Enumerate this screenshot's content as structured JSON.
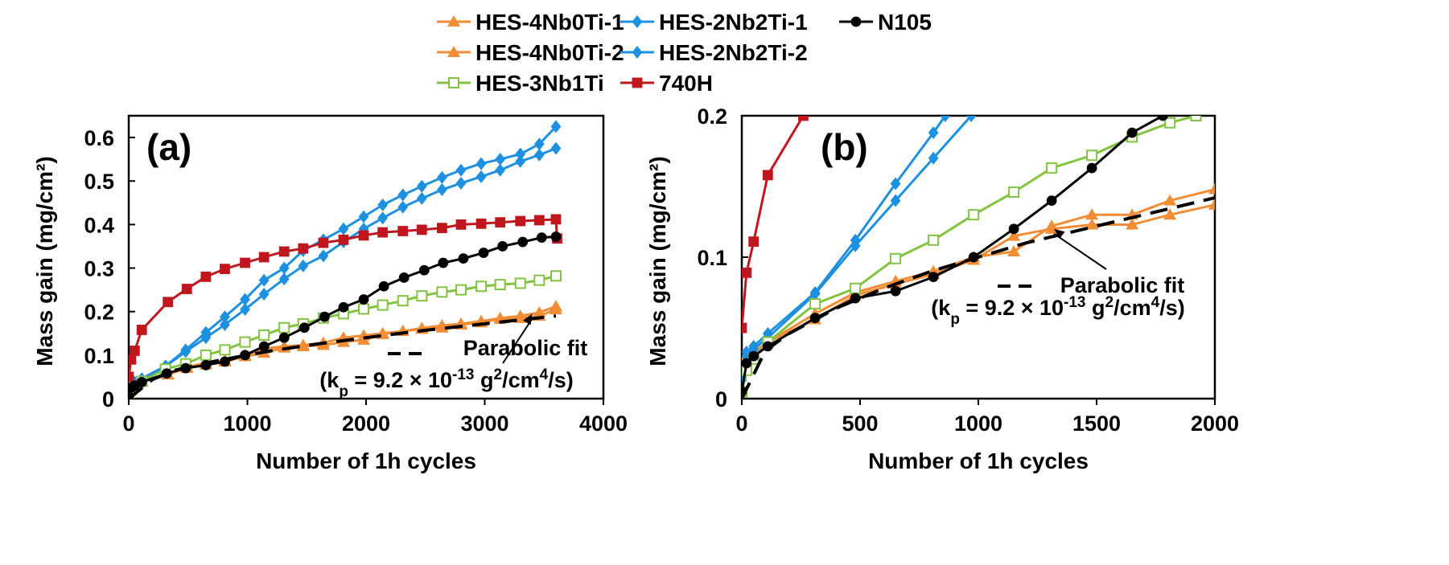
{
  "legend": [
    {
      "label": "HES-4Nb0Ti-1",
      "color": "#f28c35",
      "marker": "triangle"
    },
    {
      "label": "HES-2Nb2Ti-1",
      "color": "#1e90e0",
      "marker": "diamond"
    },
    {
      "label": "N105",
      "color": "#000000",
      "marker": "circle"
    },
    {
      "label": "HES-4Nb0Ti-2",
      "color": "#f28c35",
      "marker": "triangle"
    },
    {
      "label": "HES-2Nb2Ti-2",
      "color": "#1e90e0",
      "marker": "diamond"
    },
    {
      "label": "HES-3Nb1Ti",
      "color": "#82c341",
      "marker": "square-open"
    },
    {
      "label": "740H",
      "color": "#c0171f",
      "marker": "square"
    }
  ],
  "chart_data": [
    {
      "type": "line",
      "panel_label": "(a)",
      "xlabel": "Number of 1h cycles",
      "ylabel": "Mass gain (mg/cm²)",
      "xlim": [
        0,
        4000
      ],
      "ylim": [
        0,
        0.65
      ],
      "xticks": [
        0,
        1000,
        2000,
        3000,
        4000
      ],
      "yticks": [
        0,
        0.1,
        0.2,
        0.3,
        0.4,
        0.5,
        0.6
      ],
      "ytick_labels": [
        "0",
        "0.1",
        "0.2",
        "0.3",
        "0.4",
        "0.5",
        "0.6"
      ],
      "fit_label": "Parabolic fit",
      "fit_kp_label": "(kp = 9.2 × 10-13 g2/cm4/s)",
      "series": [
        {
          "name": "HES-4Nb0Ti-1",
          "color": "#f28c35",
          "marker": "triangle",
          "x": [
            0,
            20,
            50,
            110,
            330,
            490,
            650,
            810,
            980,
            1140,
            1310,
            1470,
            1640,
            1810,
            1980,
            2140,
            2310,
            2470,
            2640,
            2800,
            2970,
            3130,
            3300,
            3460,
            3600
          ],
          "y": [
            0.005,
            0.022,
            0.03,
            0.04,
            0.055,
            0.07,
            0.078,
            0.085,
            0.097,
            0.105,
            0.117,
            0.12,
            0.123,
            0.13,
            0.135,
            0.148,
            0.155,
            0.162,
            0.168,
            0.172,
            0.178,
            0.185,
            0.19,
            0.198,
            0.212
          ]
        },
        {
          "name": "HES-4Nb0Ti-2",
          "color": "#f28c35",
          "marker": "triangle",
          "x": [
            0,
            20,
            50,
            110,
            330,
            490,
            650,
            810,
            980,
            1140,
            1310,
            1470,
            1640,
            1810,
            1980,
            2140,
            2310,
            2470,
            2640,
            2800,
            2970,
            3130,
            3300,
            3460,
            3600
          ],
          "y": [
            0.005,
            0.02,
            0.028,
            0.038,
            0.056,
            0.073,
            0.082,
            0.088,
            0.1,
            0.115,
            0.12,
            0.123,
            0.128,
            0.14,
            0.145,
            0.15,
            0.155,
            0.16,
            0.163,
            0.17,
            0.175,
            0.183,
            0.185,
            0.19,
            0.205
          ]
        },
        {
          "name": "HES-2Nb2Ti-1",
          "color": "#1e90e0",
          "marker": "diamond",
          "x": [
            0,
            20,
            50,
            110,
            310,
            480,
            650,
            810,
            980,
            1140,
            1310,
            1470,
            1640,
            1810,
            1980,
            2140,
            2310,
            2470,
            2640,
            2800,
            2970,
            3130,
            3300,
            3460,
            3600
          ],
          "y": [
            0.015,
            0.033,
            0.038,
            0.046,
            0.075,
            0.112,
            0.152,
            0.188,
            0.228,
            0.272,
            0.3,
            0.34,
            0.365,
            0.39,
            0.418,
            0.445,
            0.468,
            0.488,
            0.508,
            0.525,
            0.54,
            0.55,
            0.562,
            0.585,
            0.625
          ]
        },
        {
          "name": "HES-2Nb2Ti-2",
          "color": "#1e90e0",
          "marker": "diamond",
          "x": [
            0,
            20,
            50,
            110,
            310,
            480,
            650,
            810,
            980,
            1140,
            1310,
            1470,
            1640,
            1810,
            1980,
            2140,
            2310,
            2470,
            2640,
            2800,
            2970,
            3130,
            3300,
            3460,
            3600
          ],
          "y": [
            0.013,
            0.03,
            0.035,
            0.043,
            0.074,
            0.108,
            0.14,
            0.17,
            0.205,
            0.24,
            0.275,
            0.305,
            0.328,
            0.36,
            0.39,
            0.415,
            0.44,
            0.46,
            0.48,
            0.495,
            0.51,
            0.525,
            0.545,
            0.56,
            0.575
          ]
        },
        {
          "name": "HES-3Nb1Ti",
          "color": "#82c341",
          "marker": "square-open",
          "x": [
            0,
            20,
            50,
            110,
            310,
            480,
            650,
            810,
            980,
            1140,
            1310,
            1470,
            1640,
            1810,
            1980,
            2140,
            2310,
            2470,
            2640,
            2800,
            2970,
            3130,
            3300,
            3460,
            3600
          ],
          "y": [
            0.005,
            0.02,
            0.028,
            0.04,
            0.068,
            0.08,
            0.1,
            0.112,
            0.13,
            0.146,
            0.163,
            0.172,
            0.185,
            0.195,
            0.206,
            0.215,
            0.225,
            0.236,
            0.245,
            0.25,
            0.258,
            0.262,
            0.265,
            0.272,
            0.282
          ]
        },
        {
          "name": "740H",
          "color": "#c0171f",
          "marker": "square",
          "x": [
            0,
            20,
            50,
            110,
            330,
            490,
            650,
            810,
            980,
            1140,
            1310,
            1470,
            1640,
            1810,
            1980,
            2140,
            2310,
            2470,
            2640,
            2800,
            2970,
            3130,
            3300,
            3460,
            3600,
            3610
          ],
          "y": [
            0.05,
            0.09,
            0.11,
            0.158,
            0.222,
            0.252,
            0.28,
            0.298,
            0.312,
            0.325,
            0.338,
            0.345,
            0.358,
            0.365,
            0.375,
            0.382,
            0.385,
            0.388,
            0.392,
            0.4,
            0.402,
            0.405,
            0.408,
            0.41,
            0.412,
            0.368
          ]
        },
        {
          "name": "N105",
          "color": "#000000",
          "marker": "circle",
          "x": [
            0,
            20,
            50,
            110,
            320,
            480,
            650,
            810,
            980,
            1140,
            1310,
            1480,
            1650,
            1810,
            1980,
            2150,
            2320,
            2490,
            2650,
            2820,
            2990,
            3150,
            3320,
            3480,
            3600
          ],
          "y": [
            0.005,
            0.025,
            0.03,
            0.038,
            0.058,
            0.07,
            0.077,
            0.085,
            0.1,
            0.12,
            0.14,
            0.163,
            0.188,
            0.21,
            0.228,
            0.258,
            0.278,
            0.295,
            0.312,
            0.322,
            0.335,
            0.35,
            0.36,
            0.37,
            0.372
          ]
        },
        {
          "name": "Parabolic fit",
          "color": "#000000",
          "marker": "none",
          "dashed": true,
          "x": [
            0,
            200,
            400,
            600,
            800,
            1000,
            1200,
            1400,
            1600,
            1800,
            2000,
            2200,
            2400,
            2600,
            2800,
            3000,
            3200,
            3400,
            3600
          ],
          "y": [
            0.0,
            0.044,
            0.066,
            0.079,
            0.09,
            0.1,
            0.11,
            0.118,
            0.126,
            0.133,
            0.14,
            0.147,
            0.154,
            0.16,
            0.166,
            0.172,
            0.178,
            0.184,
            0.19
          ]
        }
      ]
    },
    {
      "type": "line",
      "panel_label": "(b)",
      "xlabel": "Number of 1h cycles",
      "ylabel": "Mass gain (mg/cm²)",
      "xlim": [
        0,
        2000
      ],
      "ylim": [
        0,
        0.2
      ],
      "xticks": [
        0,
        500,
        1000,
        1500,
        2000
      ],
      "yticks": [
        0,
        0.1,
        0.2
      ],
      "ytick_labels": [
        "0",
        "0.1",
        "0.2"
      ],
      "fit_label": "Parabolic fit",
      "fit_kp_label": "(kp = 9.2 × 10-13 g2/cm4/s)",
      "series": [
        {
          "name": "HES-4Nb0Ti-1",
          "color": "#f28c35",
          "marker": "triangle",
          "x": [
            0,
            20,
            50,
            110,
            310,
            480,
            650,
            810,
            980,
            1150,
            1310,
            1480,
            1650,
            1810,
            2000
          ],
          "y": [
            0.005,
            0.03,
            0.033,
            0.04,
            0.06,
            0.075,
            0.083,
            0.09,
            0.1,
            0.104,
            0.122,
            0.13,
            0.13,
            0.14,
            0.148
          ]
        },
        {
          "name": "HES-4Nb0Ti-2",
          "color": "#f28c35",
          "marker": "triangle",
          "x": [
            0,
            20,
            50,
            110,
            310,
            480,
            650,
            810,
            980,
            1150,
            1310,
            1480,
            1650,
            1810,
            2000
          ],
          "y": [
            0.005,
            0.028,
            0.032,
            0.04,
            0.056,
            0.073,
            0.081,
            0.088,
            0.098,
            0.115,
            0.12,
            0.123,
            0.123,
            0.13,
            0.137
          ]
        },
        {
          "name": "HES-2Nb2Ti-1",
          "color": "#1e90e0",
          "marker": "diamond",
          "x": [
            0,
            20,
            50,
            110,
            310,
            480,
            650,
            810,
            860
          ],
          "y": [
            0.015,
            0.033,
            0.037,
            0.046,
            0.075,
            0.112,
            0.152,
            0.188,
            0.2
          ]
        },
        {
          "name": "HES-2Nb2Ti-2",
          "color": "#1e90e0",
          "marker": "diamond",
          "x": [
            0,
            20,
            50,
            110,
            310,
            480,
            650,
            810,
            970
          ],
          "y": [
            0.013,
            0.03,
            0.035,
            0.043,
            0.074,
            0.108,
            0.14,
            0.17,
            0.2
          ]
        },
        {
          "name": "HES-3Nb1Ti",
          "color": "#82c341",
          "marker": "square-open",
          "x": [
            0,
            20,
            50,
            110,
            310,
            480,
            650,
            810,
            980,
            1150,
            1310,
            1480,
            1650,
            1810,
            1920
          ],
          "y": [
            0.005,
            0.02,
            0.028,
            0.04,
            0.067,
            0.078,
            0.099,
            0.112,
            0.13,
            0.146,
            0.163,
            0.172,
            0.185,
            0.195,
            0.2
          ]
        },
        {
          "name": "740H",
          "color": "#c0171f",
          "marker": "square",
          "x": [
            0,
            20,
            50,
            110,
            260
          ],
          "y": [
            0.05,
            0.089,
            0.111,
            0.158,
            0.2
          ]
        },
        {
          "name": "N105",
          "color": "#000000",
          "marker": "circle",
          "x": [
            0,
            20,
            50,
            110,
            310,
            480,
            650,
            810,
            980,
            1150,
            1310,
            1480,
            1650,
            1780
          ],
          "y": [
            0.005,
            0.025,
            0.03,
            0.037,
            0.057,
            0.071,
            0.076,
            0.086,
            0.1,
            0.12,
            0.14,
            0.163,
            0.188,
            0.2
          ]
        },
        {
          "name": "Parabolic fit",
          "color": "#000000",
          "marker": "none",
          "dashed": true,
          "x": [
            0,
            100,
            200,
            400,
            600,
            800,
            1000,
            1200,
            1400,
            1600,
            1800,
            2000
          ],
          "y": [
            0.0,
            0.034,
            0.046,
            0.064,
            0.078,
            0.09,
            0.1,
            0.11,
            0.118,
            0.126,
            0.134,
            0.142
          ]
        }
      ]
    }
  ]
}
